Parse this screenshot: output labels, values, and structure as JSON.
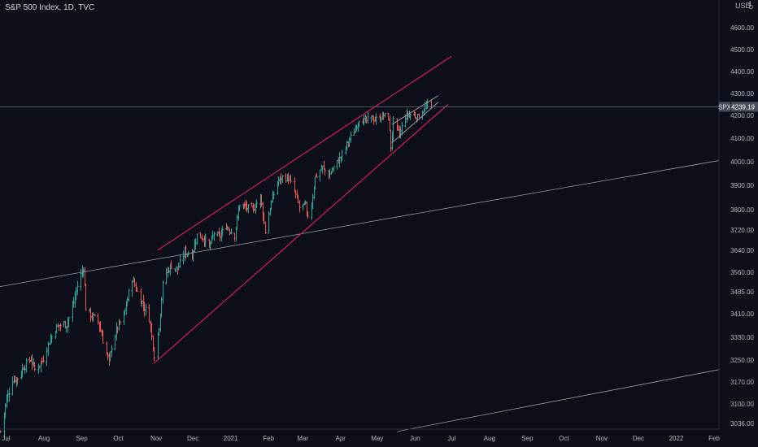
{
  "header": {
    "title": "S&P 500 Index, 1D, TVC",
    "currency": "USD",
    "corner_top": "4",
    "corner_currency_sub": "D"
  },
  "last_price": {
    "symbol": "SPX",
    "value": 4239.19
  },
  "colors": {
    "background": "#0c0e1a",
    "up": "#26a69a",
    "down": "#ef5350",
    "channel": "#d81b60",
    "trendline": "#9598a1",
    "price_line": "#5d606b",
    "tag_bg": "#4a4e5a"
  },
  "chart_data": {
    "type": "ohlc",
    "title": "S&P 500 Index, 1D, TVC",
    "xlabel": "",
    "ylabel": "",
    "ylim": [
      3000,
      4700
    ],
    "y_ticks": [
      3036.0,
      3100.0,
      3170.0,
      3250.0,
      3330.0,
      3410.0,
      3485.0,
      3560.0,
      3640.0,
      3720.0,
      3800.0,
      3900.0,
      4000.0,
      4100.0,
      4200.0,
      4300.0,
      4400.0,
      4500.0,
      4600.0
    ],
    "x_ticks": [
      "Jul",
      "Aug",
      "Sep",
      "Oct",
      "Nov",
      "Dec",
      "2021",
      "Feb",
      "Mar",
      "Apr",
      "May",
      "Jun",
      "Jul",
      "Aug",
      "Sep",
      "Oct",
      "Nov",
      "Dec",
      "2022",
      "Feb"
    ],
    "x_start": "2020-06-26",
    "x_end": "2022-02-05",
    "close_path": [
      [
        "2020-06-26",
        3010
      ],
      [
        "2020-07-01",
        3115
      ],
      [
        "2020-07-06",
        3180
      ],
      [
        "2020-07-10",
        3185
      ],
      [
        "2020-07-15",
        3225
      ],
      [
        "2020-07-21",
        3255
      ],
      [
        "2020-07-24",
        3215
      ],
      [
        "2020-07-30",
        3245
      ],
      [
        "2020-08-04",
        3305
      ],
      [
        "2020-08-10",
        3360
      ],
      [
        "2020-08-14",
        3372
      ],
      [
        "2020-08-19",
        3375
      ],
      [
        "2020-08-24",
        3430
      ],
      [
        "2020-08-28",
        3508
      ],
      [
        "2020-09-02",
        3580
      ],
      [
        "2020-09-04",
        3430
      ],
      [
        "2020-09-09",
        3400
      ],
      [
        "2020-09-14",
        3385
      ],
      [
        "2020-09-18",
        3320
      ],
      [
        "2020-09-23",
        3240
      ],
      [
        "2020-09-25",
        3300
      ],
      [
        "2020-09-30",
        3365
      ],
      [
        "2020-10-05",
        3400
      ],
      [
        "2020-10-09",
        3480
      ],
      [
        "2020-10-12",
        3535
      ],
      [
        "2020-10-16",
        3485
      ],
      [
        "2020-10-21",
        3440
      ],
      [
        "2020-10-26",
        3395
      ],
      [
        "2020-10-30",
        3270
      ],
      [
        "2020-11-03",
        3370
      ],
      [
        "2020-11-06",
        3510
      ],
      [
        "2020-11-09",
        3560
      ],
      [
        "2020-11-13",
        3585
      ],
      [
        "2020-11-18",
        3570
      ],
      [
        "2020-11-24",
        3635
      ],
      [
        "2020-11-30",
        3625
      ],
      [
        "2020-12-04",
        3700
      ],
      [
        "2020-12-09",
        3690
      ],
      [
        "2020-12-14",
        3650
      ],
      [
        "2020-12-18",
        3710
      ],
      [
        "2020-12-22",
        3690
      ],
      [
        "2020-12-28",
        3735
      ],
      [
        "2021-01-04",
        3700
      ],
      [
        "2021-01-08",
        3825
      ],
      [
        "2021-01-13",
        3810
      ],
      [
        "2021-01-19",
        3800
      ],
      [
        "2021-01-25",
        3855
      ],
      [
        "2021-01-29",
        3715
      ],
      [
        "2021-02-03",
        3830
      ],
      [
        "2021-02-08",
        3915
      ],
      [
        "2021-02-12",
        3935
      ],
      [
        "2021-02-17",
        3930
      ],
      [
        "2021-02-22",
        3875
      ],
      [
        "2021-02-26",
        3810
      ],
      [
        "2021-03-03",
        3820
      ],
      [
        "2021-03-04",
        3768
      ],
      [
        "2021-03-08",
        3820
      ],
      [
        "2021-03-11",
        3935
      ],
      [
        "2021-03-17",
        3975
      ],
      [
        "2021-03-22",
        3940
      ],
      [
        "2021-03-26",
        3975
      ],
      [
        "2021-04-01",
        4020
      ],
      [
        "2021-04-06",
        4075
      ],
      [
        "2021-04-12",
        4130
      ],
      [
        "2021-04-16",
        4185
      ],
      [
        "2021-04-21",
        4175
      ],
      [
        "2021-04-26",
        4187
      ],
      [
        "2021-04-30",
        4181
      ],
      [
        "2021-05-06",
        4200
      ],
      [
        "2021-05-10",
        4190
      ],
      [
        "2021-05-12",
        4063
      ],
      [
        "2021-05-14",
        4173
      ],
      [
        "2021-05-19",
        4115
      ],
      [
        "2021-05-24",
        4197
      ],
      [
        "2021-05-28",
        4204
      ],
      [
        "2021-06-03",
        4192
      ],
      [
        "2021-06-08",
        4227
      ],
      [
        "2021-06-11",
        4247
      ],
      [
        "2021-06-14",
        4239
      ]
    ],
    "channel_upper": [
      [
        "2020-11-02",
        3640
      ],
      [
        "2021-07-01",
        4470
      ]
    ],
    "channel_lower": [
      [
        "2020-10-30",
        3238
      ],
      [
        "2021-06-28",
        4250
      ]
    ],
    "wedge_upper": [
      [
        "2021-05-13",
        4160
      ],
      [
        "2021-06-20",
        4290
      ]
    ],
    "wedge_lower": [
      [
        "2021-05-13",
        4080
      ],
      [
        "2021-06-20",
        4260
      ]
    ],
    "trendline_long": [
      [
        "2020-06-26",
        3505
      ],
      [
        "2022-02-05",
        4005
      ]
    ],
    "trendline_bottom": [
      [
        "2021-05-18",
        3010
      ],
      [
        "2022-02-05",
        3215
      ]
    ]
  }
}
